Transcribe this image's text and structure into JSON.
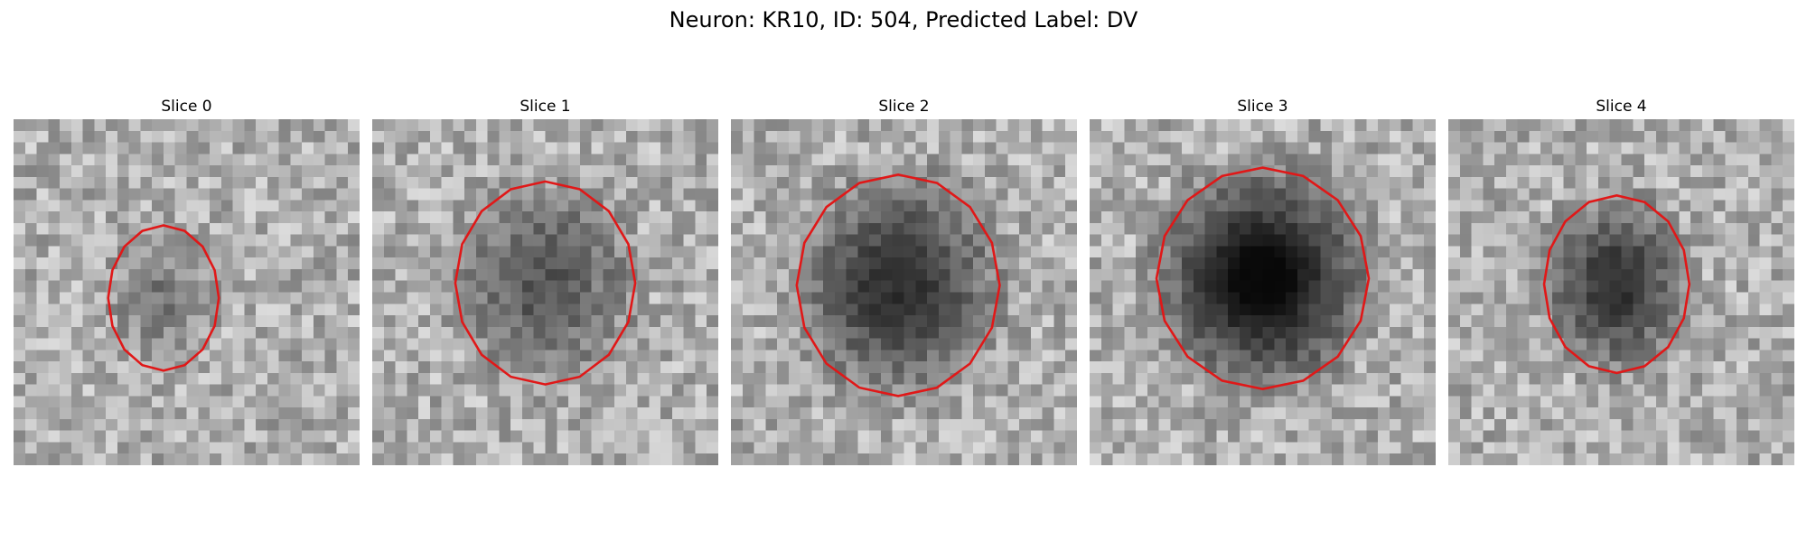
{
  "figure": {
    "title": "Neuron: KR10, ID: 504, Predicted Label: DV"
  },
  "grid_size": 30,
  "outline_color": "#e01818",
  "panels": [
    {
      "title": "Slice 0",
      "cx": 13,
      "cy": 15.5,
      "rx": 4.8,
      "ry": 6.3,
      "dark": 0.28,
      "seed": 11
    },
    {
      "title": "Slice 1",
      "cx": 15.0,
      "cy": 14.2,
      "rx": 7.8,
      "ry": 8.8,
      "dark": 0.5,
      "seed": 23
    },
    {
      "title": "Slice 2",
      "cx": 14.5,
      "cy": 14.4,
      "rx": 8.8,
      "ry": 9.6,
      "dark": 0.72,
      "seed": 37
    },
    {
      "title": "Slice 3",
      "cx": 15.0,
      "cy": 13.8,
      "rx": 9.2,
      "ry": 9.6,
      "dark": 0.95,
      "seed": 41
    },
    {
      "title": "Slice 4",
      "cx": 14.6,
      "cy": 14.3,
      "rx": 6.3,
      "ry": 7.7,
      "dark": 0.7,
      "seed": 53
    }
  ]
}
